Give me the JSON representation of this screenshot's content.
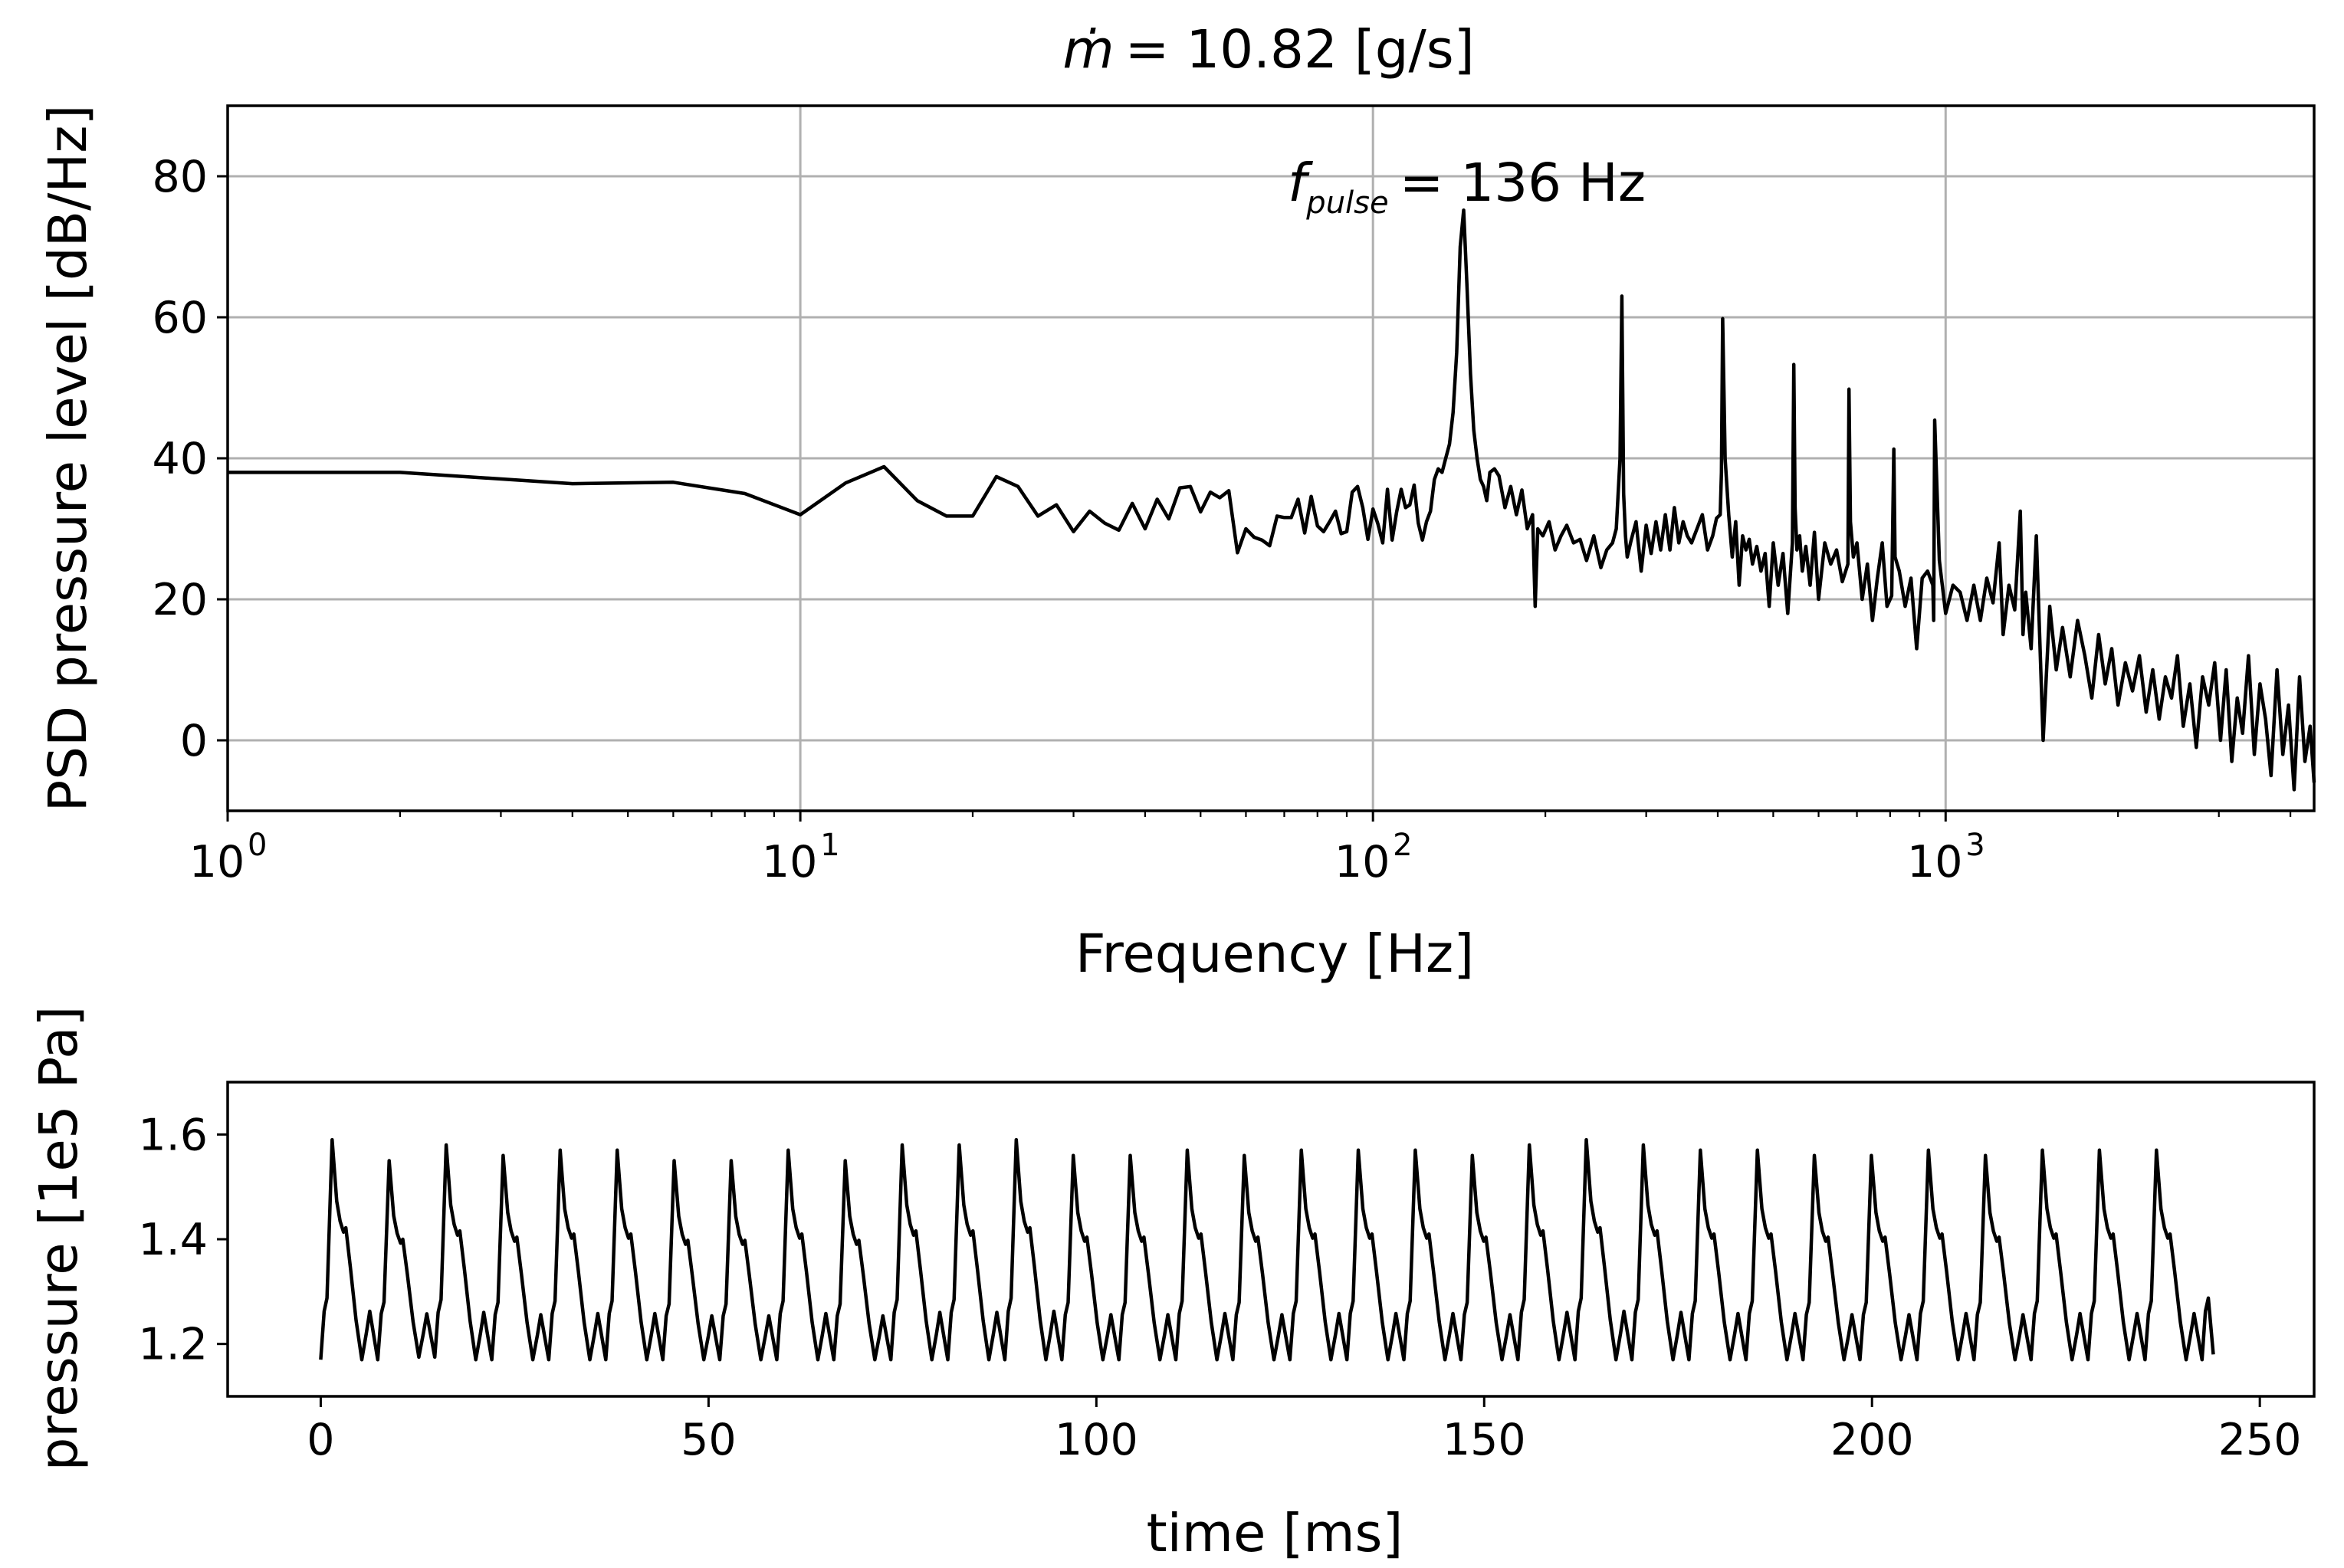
{
  "colors": {
    "line": "#000000",
    "grid": "#b0b0b0",
    "background": "#ffffff"
  },
  "chart_data": [
    {
      "type": "line",
      "title_symbol": "ṁ",
      "title_value": "=  10.82 [g/s]",
      "xlabel": "Frequency [Hz]",
      "ylabel": "PSD pressure level [dB/Hz]",
      "xscale": "log",
      "xlim": [
        1,
        4400
      ],
      "ylim": [
        -10,
        90
      ],
      "grid": true,
      "xticks": [
        {
          "base": "10",
          "exp": "0",
          "value": 1
        },
        {
          "base": "10",
          "exp": "1",
          "value": 10
        },
        {
          "base": "10",
          "exp": "2",
          "value": 100
        },
        {
          "base": "10",
          "exp": "3",
          "value": 1000
        }
      ],
      "yticks": [
        {
          "label": "0",
          "value": 0
        },
        {
          "label": "20",
          "value": 20
        },
        {
          "label": "40",
          "value": 40
        },
        {
          "label": "60",
          "value": 60
        },
        {
          "label": "80",
          "value": 80
        }
      ],
      "annotation": {
        "symbol": "f",
        "subscript": "pulse",
        "text": "=  136 Hz"
      },
      "series": [
        {
          "name": "PSD",
          "x": [
            1,
            2,
            4,
            6,
            8,
            10,
            12,
            14,
            16,
            18,
            20,
            22,
            24,
            26,
            28,
            30,
            32,
            34,
            36,
            38,
            40,
            42,
            44,
            46,
            48,
            50,
            52,
            54,
            56,
            58,
            60,
            62,
            64,
            66,
            68,
            70,
            72,
            74,
            76,
            78,
            80,
            82,
            84,
            86,
            88,
            90,
            92,
            94,
            96,
            98,
            100,
            102,
            104,
            106,
            108,
            110,
            112,
            114,
            116,
            118,
            120,
            122,
            124,
            126,
            128,
            130,
            132,
            134,
            136,
            138,
            140,
            142,
            144,
            146,
            148,
            150,
            152,
            154,
            156,
            158,
            160,
            163,
            166,
            170,
            174,
            178,
            182,
            186,
            190,
            192,
            194,
            198,
            203,
            208,
            213,
            218,
            224,
            230,
            236,
            243,
            250,
            256,
            262,
            266,
            270,
            272,
            274,
            276,
            278,
            282,
            288,
            294,
            300,
            306,
            312,
            318,
            324,
            330,
            336,
            342,
            348,
            354,
            360,
            368,
            376,
            384,
            392,
            398,
            404,
            406,
            408,
            412,
            418,
            424,
            430,
            436,
            442,
            448,
            454,
            460,
            468,
            476,
            484,
            492,
            500,
            510,
            520,
            530,
            540,
            543,
            546,
            550,
            556,
            562,
            570,
            580,
            590,
            600,
            615,
            630,
            645,
            660,
            675,
            678,
            682,
            690,
            700,
            715,
            730,
            745,
            760,
            775,
            790,
            805,
            812,
            816,
            830,
            850,
            870,
            890,
            910,
            930,
            950,
            953,
            957,
            975,
            1000,
            1030,
            1060,
            1090,
            1120,
            1150,
            1180,
            1210,
            1240,
            1260,
            1290,
            1320,
            1350,
            1365,
            1380,
            1410,
            1440,
            1480,
            1520,
            1560,
            1600,
            1650,
            1700,
            1750,
            1800,
            1850,
            1900,
            1950,
            2000,
            2060,
            2120,
            2180,
            2240,
            2300,
            2360,
            2420,
            2480,
            2540,
            2600,
            2670,
            2740,
            2810,
            2880,
            2950,
            3020,
            3090,
            3160,
            3230,
            3300,
            3380,
            3460,
            3540,
            3620,
            3700,
            3790,
            3880,
            3970,
            4060,
            4150,
            4240,
            4330,
            4400
          ],
          "y": [
            38,
            38,
            36.4,
            36.6,
            35,
            32,
            36.5,
            38.8,
            34,
            31.8,
            31.8,
            37.4,
            36,
            31.8,
            33.4,
            29.6,
            32.5,
            30.8,
            29.8,
            33.6,
            30,
            34.2,
            31.4,
            35.8,
            36,
            32.4,
            35.2,
            34.4,
            35.4,
            26.6,
            30,
            28.8,
            28.4,
            27.6,
            31.8,
            31.6,
            31.6,
            34.2,
            29.4,
            34.6,
            30.4,
            29.6,
            31,
            32.5,
            29.3,
            29.6,
            35.2,
            36,
            33,
            28.5,
            32.8,
            30.7,
            28,
            35.6,
            28.4,
            32.4,
            35.6,
            33,
            33.4,
            36.2,
            30.8,
            28.4,
            31,
            32.5,
            37,
            38.5,
            38,
            40,
            42,
            46.5,
            55,
            70,
            75.2,
            64,
            52,
            44,
            40,
            37,
            36,
            34,
            38,
            38.5,
            37.5,
            33,
            36,
            32,
            35.5,
            30,
            32,
            19,
            30,
            29,
            31,
            27,
            29,
            30.5,
            28,
            28.5,
            25.5,
            29,
            24.5,
            27,
            28,
            30,
            40,
            63,
            35,
            29,
            26,
            28.2,
            31,
            24,
            30.5,
            26.5,
            31,
            27,
            32,
            27,
            33,
            28,
            31,
            29,
            28,
            30,
            32,
            27,
            29,
            31.5,
            32,
            38,
            59.8,
            40,
            32,
            26,
            31,
            22,
            29,
            27,
            28.5,
            25,
            27.5,
            24,
            26.5,
            19,
            28,
            22,
            26.5,
            18,
            28,
            53.3,
            33,
            27,
            29,
            24,
            27.5,
            22,
            29.5,
            20,
            28,
            25,
            27,
            22.5,
            25,
            49.8,
            31,
            26,
            28,
            20,
            25,
            17,
            23,
            28,
            19,
            20.5,
            41.3,
            26,
            24,
            19,
            23,
            13,
            23,
            24,
            22,
            17,
            45.4,
            25.5,
            18,
            22,
            21,
            17,
            22,
            17,
            23,
            19.5,
            28,
            15,
            22,
            18.5,
            32.5,
            15,
            21,
            13,
            29,
            0,
            19,
            10,
            16,
            9,
            17,
            12,
            6,
            15,
            8,
            13,
            5,
            11,
            7,
            12,
            4,
            10,
            3,
            9,
            6,
            12,
            2,
            8,
            -1,
            9,
            5,
            11,
            0,
            10,
            -3,
            6,
            1,
            12,
            -2,
            8,
            3,
            -5,
            10,
            -2,
            5,
            -7,
            9,
            -3,
            2,
            -6
          ]
        }
      ]
    },
    {
      "type": "line",
      "xlabel": "time [ms]",
      "ylabel": "pressure [1e5 Pa]",
      "xlim": [
        -12,
        257
      ],
      "ylim": [
        1.1,
        1.7
      ],
      "grid": false,
      "xticks": [
        {
          "label": "0",
          "value": 0
        },
        {
          "label": "50",
          "value": 50
        },
        {
          "label": "100",
          "value": 100
        },
        {
          "label": "150",
          "value": 150
        },
        {
          "label": "200",
          "value": 200
        },
        {
          "label": "250",
          "value": 250
        }
      ],
      "yticks": [
        {
          "label": "1.2",
          "value": 1.2
        },
        {
          "label": "1.4",
          "value": 1.4
        },
        {
          "label": "1.6",
          "value": 1.6
        }
      ],
      "series": [
        {
          "name": "pressure",
          "t_start": 0,
          "t_end": 244,
          "period_ms": 7.35,
          "cycle_peaks": [
            1.59,
            1.55,
            1.58,
            1.56,
            1.57,
            1.57,
            1.55,
            1.55,
            1.57,
            1.55,
            1.58,
            1.58,
            1.59,
            1.56,
            1.56,
            1.57,
            1.56,
            1.57,
            1.57,
            1.57,
            1.56,
            1.58,
            1.59,
            1.58,
            1.57,
            1.57,
            1.56,
            1.56,
            1.57,
            1.56,
            1.57,
            1.57,
            1.57
          ],
          "cycle_troughs": [
            1.17,
            1.175,
            1.17,
            1.17,
            1.17,
            1.17,
            1.17,
            1.17,
            1.17,
            1.17,
            1.17,
            1.17,
            1.17,
            1.17,
            1.17,
            1.17,
            1.17,
            1.17,
            1.17,
            1.17,
            1.17,
            1.17,
            1.17,
            1.17,
            1.17,
            1.17,
            1.17,
            1.17,
            1.17,
            1.17,
            1.17,
            1.17,
            1.17
          ],
          "end_value": 1.18
        }
      ]
    }
  ]
}
